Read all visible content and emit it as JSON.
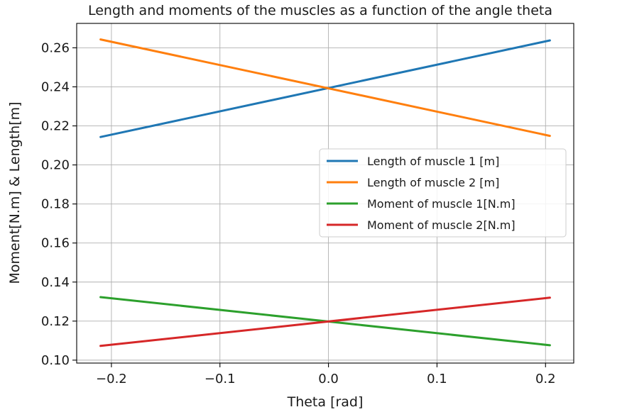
{
  "chart_data": {
    "type": "line",
    "title": "Length and moments of the muscles as a function of the angle theta",
    "xlabel": "Theta [rad]",
    "ylabel": "Moment[N.m] & Length[m]",
    "xlim": [
      -0.232,
      0.226
    ],
    "ylim": [
      0.0985,
      0.2725
    ],
    "xticks": [
      -0.2,
      -0.1,
      0.0,
      0.1,
      0.2
    ],
    "xtick_labels": [
      "−0.2",
      "−0.1",
      "0.0",
      "0.1",
      "0.2"
    ],
    "yticks": [
      0.1,
      0.12,
      0.14,
      0.16,
      0.18,
      0.2,
      0.22,
      0.24,
      0.26
    ],
    "ytick_labels": [
      "0.10",
      "0.12",
      "0.14",
      "0.16",
      "0.18",
      "0.20",
      "0.22",
      "0.24",
      "0.26"
    ],
    "grid": true,
    "legend_position": "center-right",
    "series": [
      {
        "name": "Length of muscle 1 [m]",
        "color": "#1f77b4",
        "x": [
          -0.21,
          0.204
        ],
        "y": [
          0.2143,
          0.2638
        ]
      },
      {
        "name": "Length of muscle 2 [m]",
        "color": "#ff7f0e",
        "x": [
          -0.21,
          0.204
        ],
        "y": [
          0.2643,
          0.2149
        ]
      },
      {
        "name": "Moment of muscle 1[N.m]",
        "color": "#2ca02c",
        "x": [
          -0.21,
          0.204
        ],
        "y": [
          0.1323,
          0.1076
        ]
      },
      {
        "name": "Moment of muscle 2[N.m]",
        "color": "#d62728",
        "x": [
          -0.21,
          0.204
        ],
        "y": [
          0.1073,
          0.132
        ]
      }
    ]
  }
}
